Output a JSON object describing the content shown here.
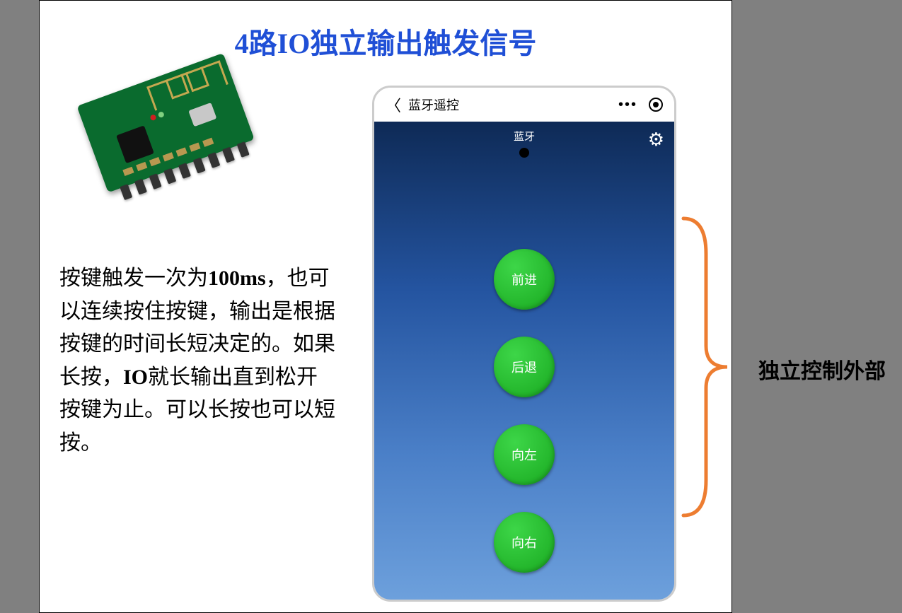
{
  "title": "4路IO独立输出触发信号",
  "description_html": "按键触发一次为<b>100ms</b>，也可以连续按住按键，输出是根据按键的时间长短决定的。如果长按，<b>IO</b>就长输出直到松开按键为止。可以长按也可以短按。",
  "phone": {
    "nav_title": "蓝牙遥控",
    "bt_label": "蓝牙",
    "buttons": [
      "前进",
      "后退",
      "向左",
      "向右"
    ]
  },
  "side_label": "独立控制外部",
  "colors": {
    "title": "#1f4fd6",
    "button_green_top": "#3dd648",
    "button_green_bottom": "#18a81f",
    "phone_grad_top": "#0e2a56",
    "phone_grad_bottom": "#6da0dc",
    "brace": "#ed7d31",
    "pcb": "#0a6b2e"
  }
}
